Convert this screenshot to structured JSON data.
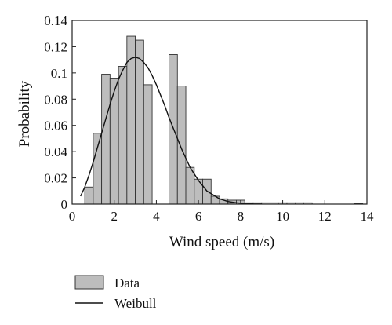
{
  "chart_data": {
    "type": "bar",
    "xlabel": "Wind speed (m/s)",
    "ylabel": "Probability",
    "xlim": [
      0,
      14
    ],
    "ylim": [
      0,
      0.14
    ],
    "x_ticks": [
      0,
      2,
      4,
      6,
      8,
      10,
      12,
      14
    ],
    "y_ticks": [
      0,
      0.02,
      0.04,
      0.06,
      0.08,
      0.1,
      0.12,
      0.14
    ],
    "x_tick_labels": [
      "0",
      "2",
      "4",
      "6",
      "8",
      "10",
      "12",
      "14"
    ],
    "y_tick_labels": [
      "0",
      "0.02",
      "0.04",
      "0.06",
      "0.08",
      "0.1",
      "0.12",
      "0.14"
    ],
    "grid": false,
    "legend_position": "below",
    "series": [
      {
        "name": "Data",
        "kind": "histogram",
        "color": "#bdbdbd",
        "bin_width": 0.4,
        "bin_centers": [
          0.8,
          1.2,
          1.6,
          2.0,
          2.4,
          2.8,
          3.2,
          3.6,
          4.0,
          4.4,
          4.8,
          5.2,
          5.6,
          6.0,
          6.4,
          6.8,
          7.2,
          7.6,
          8.0,
          8.4,
          8.8,
          9.2,
          9.6,
          10.0,
          10.4,
          10.8,
          11.2,
          11.6,
          12.0,
          12.4,
          12.8,
          13.2,
          13.6
        ],
        "values": [
          0.013,
          0.054,
          0.099,
          0.096,
          0.105,
          0.128,
          0.125,
          0.091,
          0,
          0,
          0.114,
          0.09,
          0.028,
          0.019,
          0.019,
          0.006,
          0.004,
          0.003,
          0.003,
          0.001,
          0.001,
          0.001,
          0.001,
          0.001,
          0.001,
          0.001,
          0.001,
          0,
          0,
          0,
          0,
          0,
          0.0005
        ]
      },
      {
        "name": "Weibull",
        "kind": "line",
        "color": "#111111",
        "x": [
          0.4,
          0.6,
          0.8,
          1.0,
          1.2,
          1.4,
          1.6,
          1.8,
          2.0,
          2.2,
          2.4,
          2.6,
          2.8,
          3.0,
          3.2,
          3.4,
          3.6,
          3.8,
          4.0,
          4.2,
          4.4,
          4.6,
          4.8,
          5.0,
          5.2,
          5.4,
          5.6,
          5.8,
          6.0,
          6.2,
          6.4,
          6.6,
          6.8,
          7.0,
          7.4,
          7.8,
          8.2,
          8.6,
          9.0
        ],
        "y": [
          0.006,
          0.013,
          0.022,
          0.032,
          0.043,
          0.054,
          0.065,
          0.076,
          0.086,
          0.095,
          0.102,
          0.108,
          0.111,
          0.112,
          0.111,
          0.108,
          0.104,
          0.098,
          0.091,
          0.083,
          0.075,
          0.066,
          0.058,
          0.05,
          0.042,
          0.035,
          0.028,
          0.023,
          0.018,
          0.014,
          0.01,
          0.008,
          0.006,
          0.004,
          0.002,
          0.001,
          0.0005,
          0.0002,
          0.0001
        ]
      }
    ]
  }
}
